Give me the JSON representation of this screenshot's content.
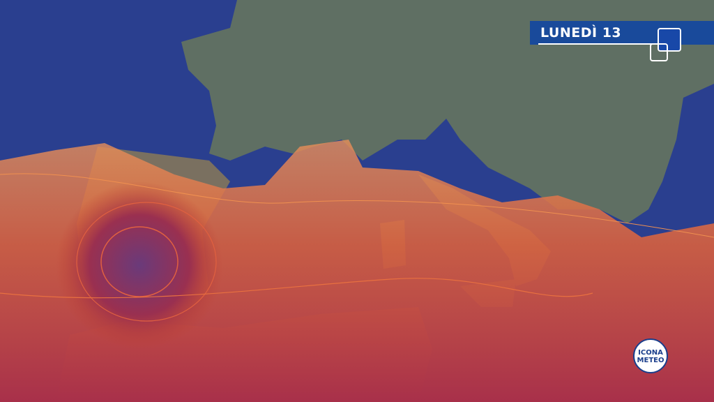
{
  "header": {
    "day_label": "LUNEDÌ 13"
  },
  "logo": {
    "line1": "ICONA",
    "line2": "METEO"
  },
  "colors": {
    "sea": "#2a3f8f",
    "land": "#5d6e62",
    "heat_low": "#e89a5a",
    "heat_high": "#c0302a",
    "heat_core": "#6a3a7a",
    "banner": "#1446a0"
  }
}
